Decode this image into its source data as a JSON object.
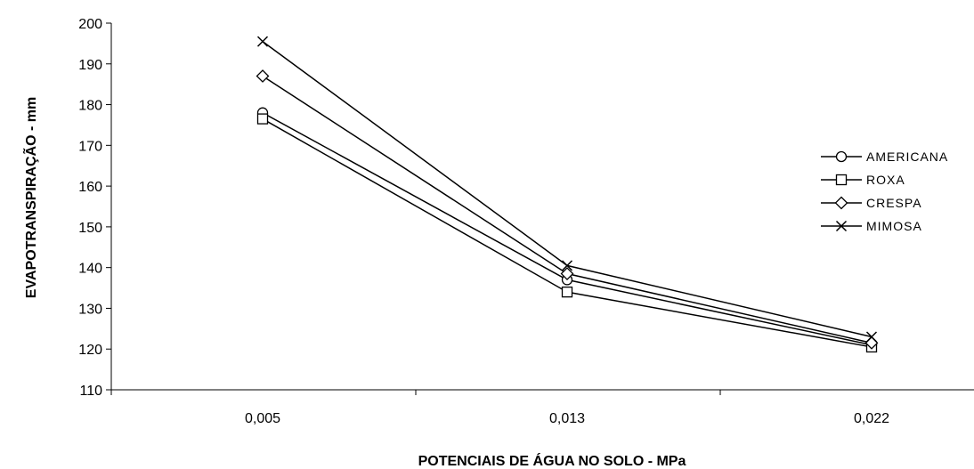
{
  "chart_data": {
    "type": "line",
    "title": "",
    "xlabel": "POTENCIAIS DE ÁGUA NO SOLO - MPa",
    "ylabel": "EVAPOTRANSPIRAÇÃO - mm",
    "categories": [
      "0,005",
      "0,013",
      "0,022"
    ],
    "ylim": [
      110,
      200
    ],
    "yticks": [
      110,
      120,
      130,
      140,
      150,
      160,
      170,
      180,
      190,
      200
    ],
    "grid": false,
    "legend_position": "right",
    "series": [
      {
        "name": "AMERICANA",
        "marker": "circle",
        "values": [
          178,
          137,
          121
        ]
      },
      {
        "name": "ROXA",
        "marker": "square",
        "values": [
          176.5,
          134,
          120.5
        ]
      },
      {
        "name": "CRESPA",
        "marker": "diamond",
        "values": [
          187,
          138.5,
          121.5
        ]
      },
      {
        "name": "MIMOSA",
        "marker": "x",
        "values": [
          195.5,
          140.5,
          123
        ]
      }
    ],
    "colors": {
      "line": "#000000",
      "background": "#ffffff"
    }
  }
}
